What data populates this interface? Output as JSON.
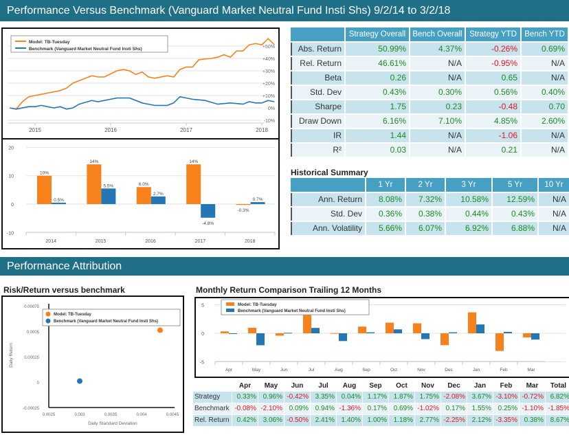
{
  "header": {
    "title": "Performance Versus Benchmark (Vanguard Market Neutral Fund Insti Shs) 9/2/14 to 3/2/18"
  },
  "section2": {
    "title": "Performance Attribution",
    "risk_title": "Risk/Return versus benchmark",
    "monthly_title": "Monthly Return Comparison Trailing 12 Months"
  },
  "colors": {
    "model": "#f7811b",
    "benchmark": "#2576b4",
    "positive": "#1c8a1c",
    "negative": "#e8121c",
    "header": "#1f6f87",
    "table_header": "#45a0c4"
  },
  "legend": {
    "model": "Model: TB-Tuesday",
    "benchmark": "Benchmark (Vanguard Market Neutral Fund Insti Shs)"
  },
  "stats_table": {
    "columns": [
      "",
      "Strategy Overall",
      "Bench Overall",
      "Strategy YTD",
      "Bench YTD"
    ],
    "rows": [
      [
        "Abs. Return",
        "50.99%",
        "4.37%",
        "-0.26%",
        "0.69%"
      ],
      [
        "Rel. Return",
        "46.61%",
        "N/A",
        "-0.95%",
        "N/A"
      ],
      [
        "Beta",
        "0.26",
        "N/A",
        "0.65",
        "N/A"
      ],
      [
        "Std. Dev",
        "0.43%",
        "0.30%",
        "0.56%",
        "0.40%"
      ],
      [
        "Sharpe",
        "1.75",
        "0.23",
        "-0.48",
        "0.70"
      ],
      [
        "Draw Down",
        "6.16%",
        "7.10%",
        "4.85%",
        "2.60%"
      ],
      [
        "IR",
        "1.44",
        "N/A",
        "-1.06",
        "N/A"
      ],
      [
        "R²",
        "0.03",
        "N/A",
        "0.21",
        "N/A"
      ]
    ]
  },
  "historical": {
    "title": "Historical Summary",
    "columns": [
      "",
      "1 Yr",
      "2 Yr",
      "3 Yr",
      "5 Yr",
      "10 Yr"
    ],
    "rows": [
      [
        "Ann. Return",
        "8.08%",
        "7.32%",
        "10.58%",
        "12.59%",
        "N/A"
      ],
      [
        "Std. Dev",
        "0.36%",
        "0.38%",
        "0.44%",
        "0.43%",
        "N/A"
      ],
      [
        "Ann. Volatility",
        "5.66%",
        "6.07%",
        "6.92%",
        "6.88%",
        "N/A"
      ]
    ]
  },
  "monthly_table": {
    "columns": [
      "",
      "Apr",
      "May",
      "Jun",
      "Jul",
      "Aug",
      "Sep",
      "Oct",
      "Nov",
      "Dec",
      "Jan",
      "Feb",
      "Mar",
      "Total"
    ],
    "rows": [
      [
        "Strategy",
        "0.33%",
        "0.96%",
        "-0.42%",
        "3.35%",
        "0.04%",
        "1.17%",
        "1.87%",
        "1.75%",
        "-2.08%",
        "3.67%",
        "-3.10%",
        "-0.72%",
        "6.82%"
      ],
      [
        "Benchmark",
        "-0.08%",
        "-2.10%",
        "0.09%",
        "0.94%",
        "-1.36%",
        "0.17%",
        "0.69%",
        "-1.02%",
        "0.17%",
        "1.55%",
        "0.25%",
        "-1.10%",
        "-1.85%"
      ],
      [
        "Rel. Return",
        "0.42%",
        "3.06%",
        "-0.50%",
        "2.41%",
        "1.40%",
        "1.00%",
        "1.18%",
        "2.77%",
        "-2.25%",
        "2.12%",
        "-3.35%",
        "0.38%",
        "8.67%"
      ]
    ]
  },
  "chart_data": [
    {
      "type": "line",
      "grid": true,
      "legend": "top-left",
      "xticks": [
        "2015",
        "2016",
        "2017",
        "2018"
      ],
      "yticks": [
        "-10%",
        "0%",
        "+10%",
        "+20%",
        "+30%",
        "+40%",
        "+50%"
      ],
      "ylim": [
        -10,
        55
      ],
      "series": [
        {
          "name": "Model: TB-Tuesday",
          "points": [
            [
              "2014-09",
              0
            ],
            [
              "2014-10",
              -1
            ],
            [
              "2014-11",
              5
            ],
            [
              "2014-12",
              9
            ],
            [
              "2015-01",
              10
            ],
            [
              "2015-03",
              12
            ],
            [
              "2015-05",
              14
            ],
            [
              "2015-06",
              16
            ],
            [
              "2015-07",
              20
            ],
            [
              "2015-08",
              22
            ],
            [
              "2015-10",
              26
            ],
            [
              "2015-11",
              25
            ],
            [
              "2015-12",
              25
            ],
            [
              "2016-02",
              30
            ],
            [
              "2016-03",
              31
            ],
            [
              "2016-04",
              30
            ],
            [
              "2016-05",
              27
            ],
            [
              "2016-06",
              29
            ],
            [
              "2016-07",
              25
            ],
            [
              "2016-08",
              24
            ],
            [
              "2016-10",
              26
            ],
            [
              "2016-11",
              25
            ],
            [
              "2016-12",
              31
            ],
            [
              "2017-01",
              33
            ],
            [
              "2017-02",
              33
            ],
            [
              "2017-03",
              39
            ],
            [
              "2017-05",
              40
            ],
            [
              "2017-06",
              41
            ],
            [
              "2017-07",
              43
            ],
            [
              "2017-08",
              41
            ],
            [
              "2017-09",
              46
            ],
            [
              "2017-10",
              46
            ],
            [
              "2017-11",
              51
            ],
            [
              "2017-12",
              52
            ],
            [
              "2018-01",
              51
            ],
            [
              "2018-02",
              56
            ],
            [
              "2018-03",
              51
            ]
          ]
        },
        {
          "name": "Benchmark (Vanguard Market Neutral Fund Insti Shs)",
          "points": [
            [
              "2014-09",
              0
            ],
            [
              "2014-10",
              -1
            ],
            [
              "2014-12",
              1
            ],
            [
              "2015-01",
              1
            ],
            [
              "2015-02",
              2
            ],
            [
              "2015-04",
              0
            ],
            [
              "2015-05",
              1
            ],
            [
              "2015-06",
              -1
            ],
            [
              "2015-07",
              0
            ],
            [
              "2015-08",
              3
            ],
            [
              "2015-10",
              6
            ],
            [
              "2015-11",
              5
            ],
            [
              "2015-12",
              6
            ],
            [
              "2016-01",
              7
            ],
            [
              "2016-02",
              8
            ],
            [
              "2016-04",
              8
            ],
            [
              "2016-06",
              4
            ],
            [
              "2016-07",
              3
            ],
            [
              "2016-08",
              2
            ],
            [
              "2016-10",
              2
            ],
            [
              "2016-11",
              4
            ],
            [
              "2016-12",
              9
            ],
            [
              "2017-01",
              8
            ],
            [
              "2017-02",
              7
            ],
            [
              "2017-04",
              6
            ],
            [
              "2017-06",
              3
            ],
            [
              "2017-08",
              4
            ],
            [
              "2017-10",
              3
            ],
            [
              "2017-11",
              5
            ],
            [
              "2017-12",
              4
            ],
            [
              "2018-01",
              4
            ],
            [
              "2018-02",
              6
            ],
            [
              "2018-03",
              5
            ]
          ]
        }
      ]
    },
    {
      "type": "bar",
      "grid": true,
      "categories": [
        "2014",
        "2015",
        "2016",
        "2017",
        "2018"
      ],
      "ylim": [
        -10,
        20
      ],
      "yticks": [
        "-10",
        "0",
        "10",
        "20"
      ],
      "series": [
        {
          "values": [
            10,
            14,
            6.0,
            14,
            -0.3
          ],
          "labels": [
            "10%",
            "14%",
            "6.0%",
            "14%",
            "-0.3%"
          ]
        },
        {
          "values": [
            0.5,
            5.5,
            2.7,
            -4.8,
            0.7
          ],
          "labels": [
            "0.5%",
            "5.5%",
            "2.7%",
            "-4.8%",
            "0.7%"
          ]
        }
      ]
    },
    {
      "type": "scatter",
      "xlabel": "Daily Standard Deviation",
      "ylabel": "Daily Return",
      "xlim": [
        0.0025,
        0.0045
      ],
      "ylim": [
        -0.00025,
        0.00075
      ],
      "xticks": [
        "0.0025",
        "0.003",
        "0.0035",
        "0.004",
        "0.0045"
      ],
      "yticks": [
        "-0.00025",
        "0",
        "0.00025",
        "0.0005",
        "0.00075"
      ],
      "legend": "top",
      "series": [
        {
          "name": "Model: TB-Tuesday",
          "x": 0.0043,
          "y": 0.00051
        },
        {
          "name": "Benchmark (Vanguard Market Neutral Fund Insti Shs)",
          "x": 0.003,
          "y": 1e-05
        }
      ]
    },
    {
      "type": "bar",
      "grid": true,
      "legend": "top-left",
      "categories": [
        "Apr",
        "May",
        "Jun",
        "Jul",
        "Aug",
        "Sep",
        "Oct",
        "Nov",
        "Dec",
        "Jan",
        "Feb",
        "Mar"
      ],
      "ylim": [
        -5,
        5
      ],
      "yticks": [
        "-5",
        "0",
        "5"
      ],
      "series": [
        {
          "name": "Model: TB-Tuesday",
          "values": [
            0.33,
            0.96,
            -0.42,
            3.35,
            0.04,
            1.17,
            1.87,
            1.75,
            -2.08,
            3.67,
            -3.1,
            -0.72
          ]
        },
        {
          "name": "Benchmark (Vanguard Market Neutral Fund Insti Shs)",
          "values": [
            -0.08,
            -2.1,
            0.09,
            0.94,
            -1.36,
            0.17,
            0.69,
            -1.02,
            0.17,
            1.55,
            0.25,
            -1.1
          ]
        }
      ]
    }
  ]
}
